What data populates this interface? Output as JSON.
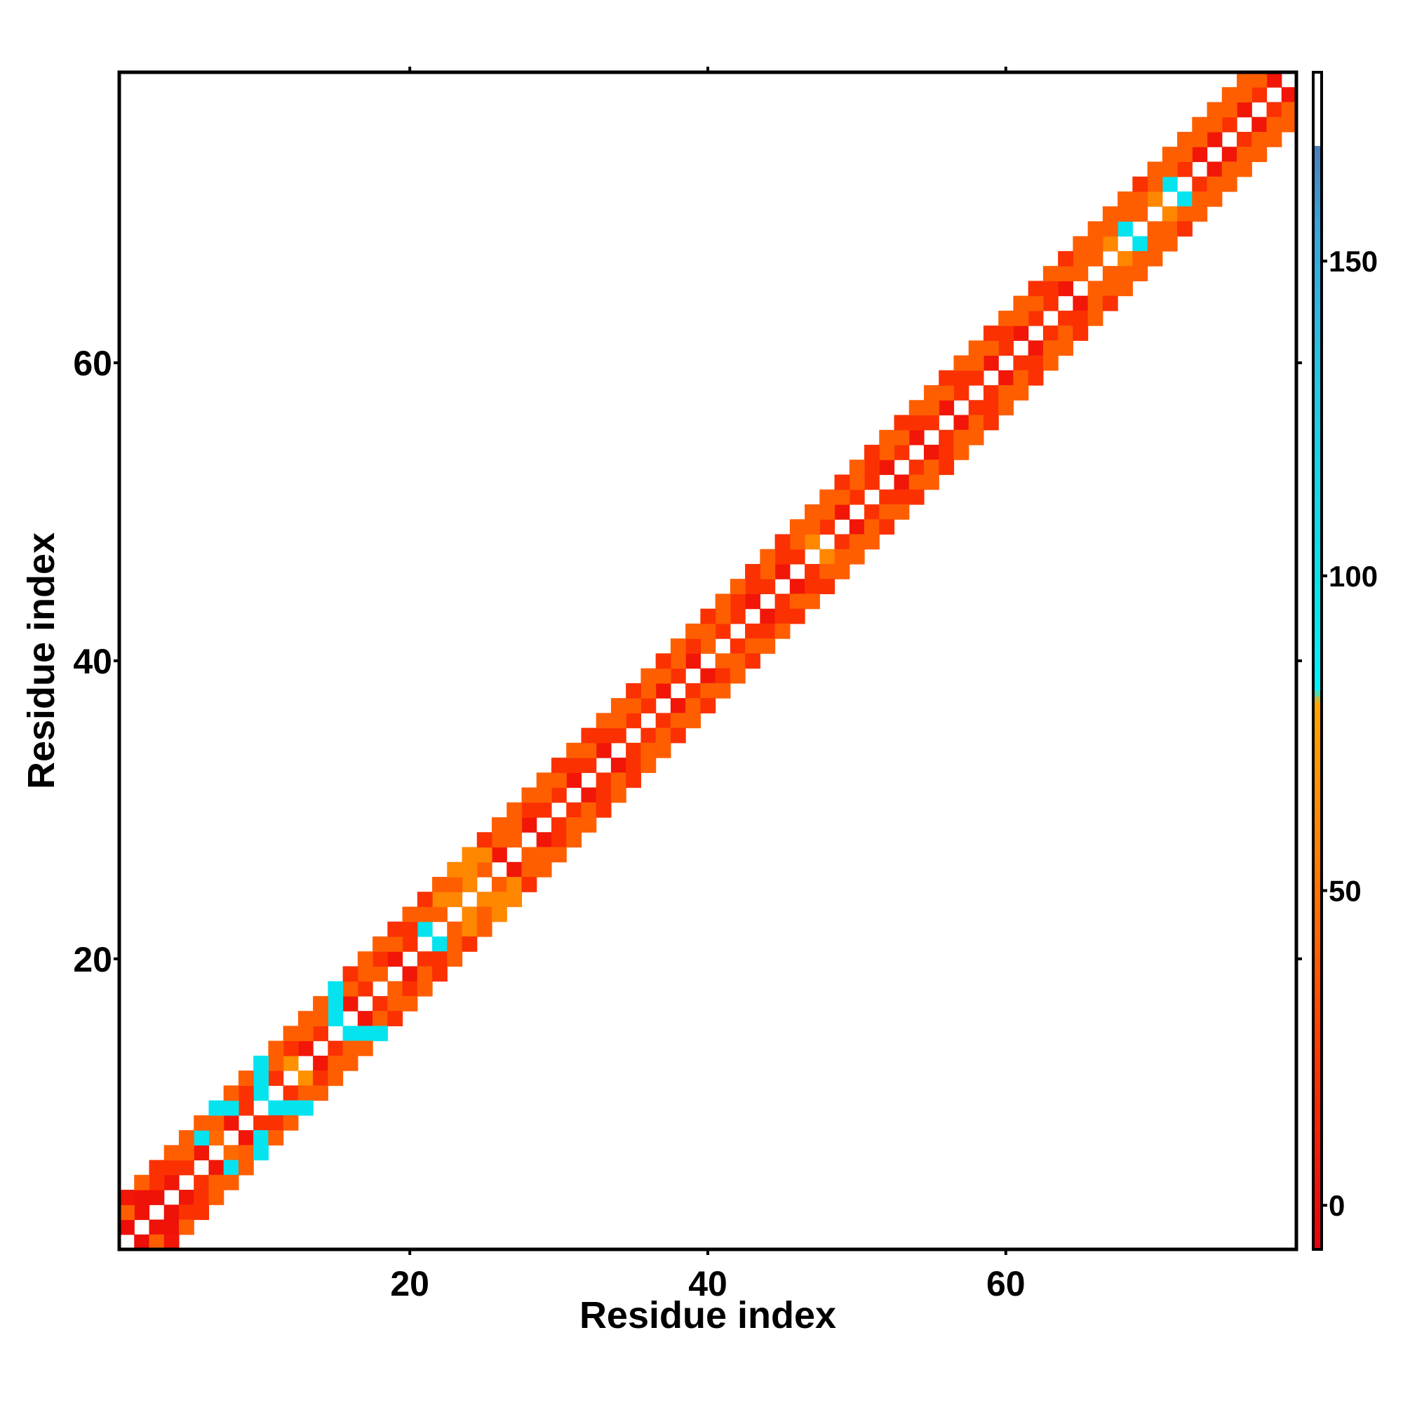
{
  "chart_data": {
    "type": "heatmap",
    "title": "",
    "xlabel": "Residue index",
    "ylabel": "Residue index",
    "n_residues": 79,
    "xlim": [
      1,
      79
    ],
    "ylim": [
      1,
      79
    ],
    "x_ticks": [
      "20",
      "40",
      "60"
    ],
    "x_tick_values": [
      20,
      40,
      60
    ],
    "y_ticks": [
      "20",
      "40",
      "60"
    ],
    "y_tick_values": [
      20,
      40,
      60
    ],
    "colorbar": {
      "ticks": [
        "0",
        "50",
        "100",
        "150"
      ],
      "tick_values": [
        0,
        50,
        100,
        150
      ],
      "range": [
        -7,
        180
      ],
      "stops": [
        {
          "v": -7,
          "color": "#e8000b"
        },
        {
          "v": 25,
          "color": "#ff3a00"
        },
        {
          "v": 45,
          "color": "#ff6a00"
        },
        {
          "v": 65,
          "color": "#ff9000"
        },
        {
          "v": 80,
          "color": "#ffa400"
        },
        {
          "v": 82,
          "color": "#00f4ff"
        },
        {
          "v": 95,
          "color": "#00e8f0"
        },
        {
          "v": 130,
          "color": "#22c8e8"
        },
        {
          "v": 155,
          "color": "#38a6dc"
        },
        {
          "v": 168,
          "color": "#4b7fbf"
        },
        {
          "v": 180,
          "color": "#5a78b8"
        }
      ]
    },
    "offsets": [
      -3,
      -2,
      -1,
      1,
      2,
      3
    ],
    "band_values": {
      "offset_1": [
        0,
        3,
        3,
        5,
        20,
        5,
        45,
        5,
        20,
        100,
        20,
        65,
        5,
        20,
        100,
        5,
        20,
        40,
        5,
        20,
        100,
        40,
        60,
        60,
        40,
        5,
        40,
        5,
        20,
        20,
        5,
        20,
        5,
        20,
        20,
        20,
        5,
        20,
        5,
        40,
        20,
        20,
        5,
        20,
        5,
        20,
        60,
        20,
        5,
        20,
        20,
        5,
        20,
        5,
        20,
        5,
        20,
        20,
        5,
        20,
        5,
        20,
        20,
        5,
        40,
        40,
        60,
        100,
        40,
        60,
        100,
        20,
        5,
        5,
        20,
        5,
        20,
        5
      ],
      "offset_2": [
        40,
        3,
        20,
        20,
        40,
        100,
        40,
        100,
        20,
        100,
        40,
        20,
        40,
        40,
        100,
        40,
        40,
        20,
        40,
        20,
        40,
        60,
        40,
        60,
        60,
        40,
        40,
        20,
        40,
        40,
        20,
        40,
        20,
        40,
        40,
        40,
        40,
        40,
        20,
        40,
        40,
        20,
        20,
        40,
        20,
        40,
        40,
        40,
        40,
        40,
        20,
        40,
        40,
        20,
        40,
        40,
        20,
        40,
        40,
        20,
        40,
        40,
        20,
        40,
        40,
        40,
        40,
        40,
        40,
        40,
        40,
        40,
        40,
        40,
        40,
        40,
        40
      ],
      "offset_3": [
        5,
        40,
        20,
        40,
        40,
        40,
        100,
        40,
        40,
        100,
        40,
        40,
        40,
        40,
        100,
        20,
        40,
        40,
        20,
        40,
        20,
        40,
        60,
        60,
        20,
        40,
        40,
        40,
        40,
        20,
        40,
        20,
        40,
        40,
        20,
        40,
        20,
        40,
        40,
        20,
        40,
        40,
        20,
        40,
        20,
        40,
        40,
        40,
        20,
        40,
        20,
        40,
        20,
        40,
        40,
        20,
        40,
        40,
        20,
        40,
        40,
        20,
        40,
        20,
        40,
        40,
        40,
        40,
        20,
        40,
        40,
        40,
        40,
        40,
        40,
        40
      ]
    }
  }
}
